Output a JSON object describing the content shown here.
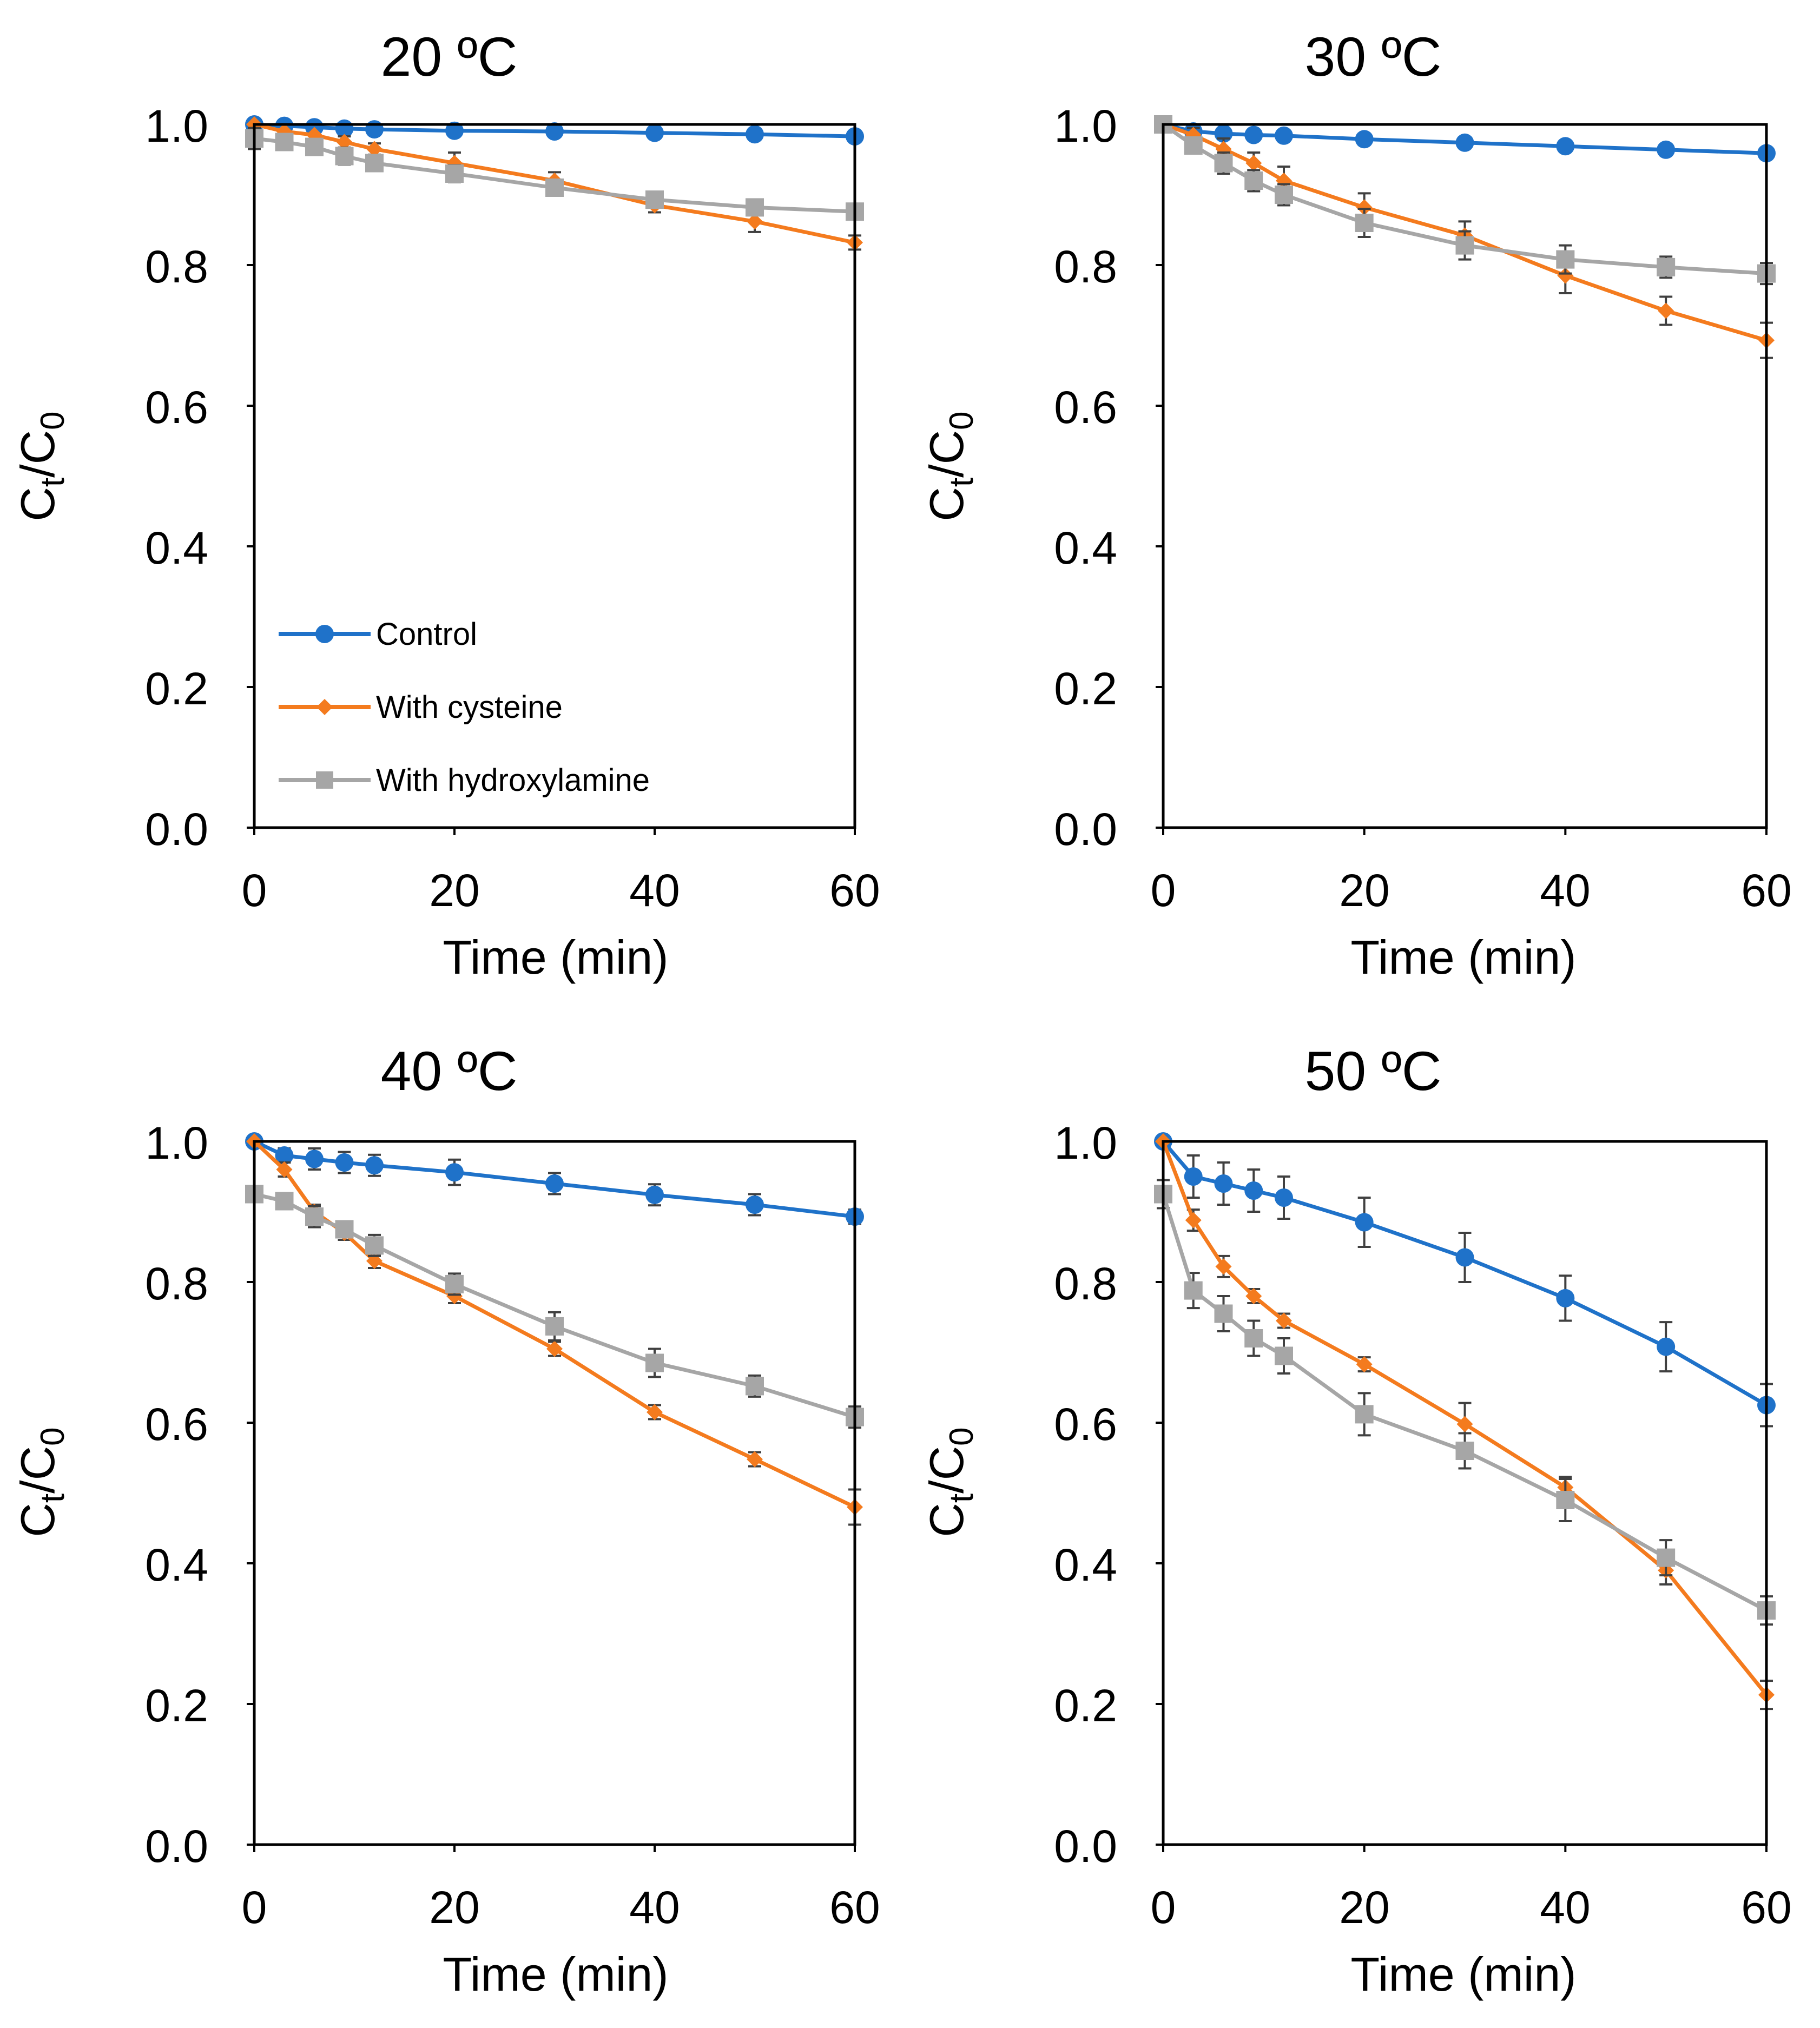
{
  "colors": {
    "control": "#1f72c9",
    "cysteine": "#f47b1e",
    "hydroxylamine": "#a6a6a6"
  },
  "legend": {
    "control": "Control",
    "cysteine": "With cysteine",
    "hydroxylamine": "With hydroxylamine"
  },
  "chart_data": [
    {
      "type": "line",
      "title": "20 ºC",
      "xlabel": "Time (min)",
      "ylabel_main": "C",
      "ylabel_sub1": "t",
      "ylabel_slash": "/C",
      "ylabel_sub2": "0",
      "xlim": [
        0,
        60
      ],
      "ylim": [
        0,
        1.0
      ],
      "xticks": [
        "0",
        "20",
        "40",
        "60"
      ],
      "yticks": [
        "0.0",
        "0.2",
        "0.4",
        "0.6",
        "0.8",
        "1.0"
      ],
      "x": [
        0,
        3,
        6,
        9,
        12,
        20,
        30,
        40,
        50,
        60
      ],
      "series": [
        {
          "name": "Control",
          "key": "control",
          "marker": "circle",
          "values": [
            1.0,
            0.998,
            0.996,
            0.994,
            0.993,
            0.991,
            0.99,
            0.988,
            0.986,
            0.983
          ],
          "errors": [
            0,
            0,
            0,
            0,
            0,
            0,
            0,
            0,
            0,
            0
          ]
        },
        {
          "name": "With cysteine",
          "key": "cysteine",
          "marker": "diamond",
          "values": [
            1.0,
            0.99,
            0.985,
            0.975,
            0.965,
            0.945,
            0.92,
            0.885,
            0.862,
            0.832
          ],
          "errors": [
            0,
            0,
            0,
            0.008,
            0.008,
            0.015,
            0.012,
            0.01,
            0.015,
            0.01
          ]
        },
        {
          "name": "With hydroxylamine",
          "key": "hydroxylamine",
          "marker": "square",
          "values": [
            0.98,
            0.975,
            0.968,
            0.955,
            0.945,
            0.93,
            0.91,
            0.893,
            0.882,
            0.876
          ],
          "errors": [
            0.015,
            0.01,
            0.01,
            0.012,
            0.01,
            0.012,
            0.01,
            0.01,
            0.01,
            0.01
          ]
        }
      ]
    },
    {
      "type": "line",
      "title": "30 ºC",
      "xlabel": "Time (min)",
      "ylabel_main": "C",
      "ylabel_sub1": "t",
      "ylabel_slash": "/C",
      "ylabel_sub2": "0",
      "xlim": [
        0,
        60
      ],
      "ylim": [
        0,
        1.0
      ],
      "xticks": [
        "0",
        "20",
        "40",
        "60"
      ],
      "yticks": [
        "0.0",
        "0.2",
        "0.4",
        "0.6",
        "0.8",
        "1.0"
      ],
      "x": [
        0,
        3,
        6,
        9,
        12,
        20,
        30,
        40,
        50,
        60
      ],
      "series": [
        {
          "name": "Control",
          "key": "control",
          "marker": "circle",
          "values": [
            1.0,
            0.99,
            0.987,
            0.985,
            0.984,
            0.979,
            0.974,
            0.969,
            0.964,
            0.959
          ],
          "errors": [
            0,
            0,
            0,
            0,
            0,
            0,
            0,
            0,
            0,
            0
          ]
        },
        {
          "name": "With cysteine",
          "key": "cysteine",
          "marker": "diamond",
          "values": [
            1.0,
            0.985,
            0.965,
            0.945,
            0.92,
            0.882,
            0.842,
            0.785,
            0.735,
            0.693
          ],
          "errors": [
            0,
            0.01,
            0.015,
            0.015,
            0.02,
            0.02,
            0.02,
            0.025,
            0.02,
            0.025
          ]
        },
        {
          "name": "With hydroxylamine",
          "key": "hydroxylamine",
          "marker": "square",
          "values": [
            1.0,
            0.97,
            0.945,
            0.92,
            0.9,
            0.86,
            0.828,
            0.808,
            0.797,
            0.788
          ],
          "errors": [
            0,
            0.01,
            0.015,
            0.015,
            0.015,
            0.02,
            0.02,
            0.02,
            0.015,
            0.015
          ]
        }
      ]
    },
    {
      "type": "line",
      "title": "40 ºC",
      "xlabel": "Time (min)",
      "ylabel_main": "C",
      "ylabel_sub1": "t",
      "ylabel_slash": "/C",
      "ylabel_sub2": "0",
      "xlim": [
        0,
        60
      ],
      "ylim": [
        0,
        1.0
      ],
      "xticks": [
        "0",
        "20",
        "40",
        "60"
      ],
      "yticks": [
        "0.0",
        "0.2",
        "0.4",
        "0.6",
        "0.8",
        "1.0"
      ],
      "x": [
        0,
        3,
        6,
        9,
        12,
        20,
        30,
        40,
        50,
        60
      ],
      "series": [
        {
          "name": "Control",
          "key": "control",
          "marker": "circle",
          "values": [
            1.0,
            0.98,
            0.975,
            0.97,
            0.966,
            0.956,
            0.94,
            0.924,
            0.91,
            0.893
          ],
          "errors": [
            0,
            0.01,
            0.015,
            0.015,
            0.015,
            0.018,
            0.015,
            0.015,
            0.015,
            0.01
          ]
        },
        {
          "name": "With cysteine",
          "key": "cysteine",
          "marker": "diamond",
          "values": [
            1.0,
            0.96,
            0.9,
            0.87,
            0.83,
            0.78,
            0.705,
            0.615,
            0.548,
            0.48
          ],
          "errors": [
            0,
            0.01,
            0.01,
            0.01,
            0.01,
            0.01,
            0.01,
            0.01,
            0.01,
            0.025
          ]
        },
        {
          "name": "With hydroxylamine",
          "key": "hydroxylamine",
          "marker": "square",
          "values": [
            0.925,
            0.915,
            0.893,
            0.875,
            0.852,
            0.797,
            0.737,
            0.685,
            0.652,
            0.608
          ],
          "errors": [
            0.01,
            0.01,
            0.015,
            0.01,
            0.015,
            0.015,
            0.02,
            0.02,
            0.015,
            0.015
          ]
        }
      ]
    },
    {
      "type": "line",
      "title": "50 ºC",
      "xlabel": "Time (min)",
      "ylabel_main": "C",
      "ylabel_sub1": "t",
      "ylabel_slash": "/C",
      "ylabel_sub2": "0",
      "xlim": [
        0,
        60
      ],
      "ylim": [
        0,
        1.0
      ],
      "xticks": [
        "0",
        "20",
        "40",
        "60"
      ],
      "yticks": [
        "0.0",
        "0.2",
        "0.4",
        "0.6",
        "0.8",
        "1.0"
      ],
      "x": [
        0,
        3,
        6,
        9,
        12,
        20,
        30,
        40,
        50,
        60
      ],
      "series": [
        {
          "name": "Control",
          "key": "control",
          "marker": "circle",
          "values": [
            1.0,
            0.95,
            0.94,
            0.93,
            0.92,
            0.885,
            0.835,
            0.777,
            0.708,
            0.625
          ],
          "errors": [
            0,
            0.03,
            0.03,
            0.03,
            0.03,
            0.035,
            0.035,
            0.032,
            0.035,
            0.03
          ]
        },
        {
          "name": "With cysteine",
          "key": "cysteine",
          "marker": "diamond",
          "values": [
            1.0,
            0.888,
            0.822,
            0.78,
            0.745,
            0.683,
            0.598,
            0.508,
            0.39,
            0.213
          ],
          "errors": [
            0,
            0.015,
            0.015,
            0.01,
            0.01,
            0.01,
            0.03,
            0.015,
            0.02,
            0.02
          ]
        },
        {
          "name": "With hydroxylamine",
          "key": "hydroxylamine",
          "marker": "square",
          "values": [
            0.925,
            0.788,
            0.755,
            0.72,
            0.695,
            0.612,
            0.56,
            0.49,
            0.408,
            0.333
          ],
          "errors": [
            0.02,
            0.025,
            0.025,
            0.025,
            0.025,
            0.03,
            0.025,
            0.03,
            0.025,
            0.02
          ]
        }
      ]
    }
  ]
}
